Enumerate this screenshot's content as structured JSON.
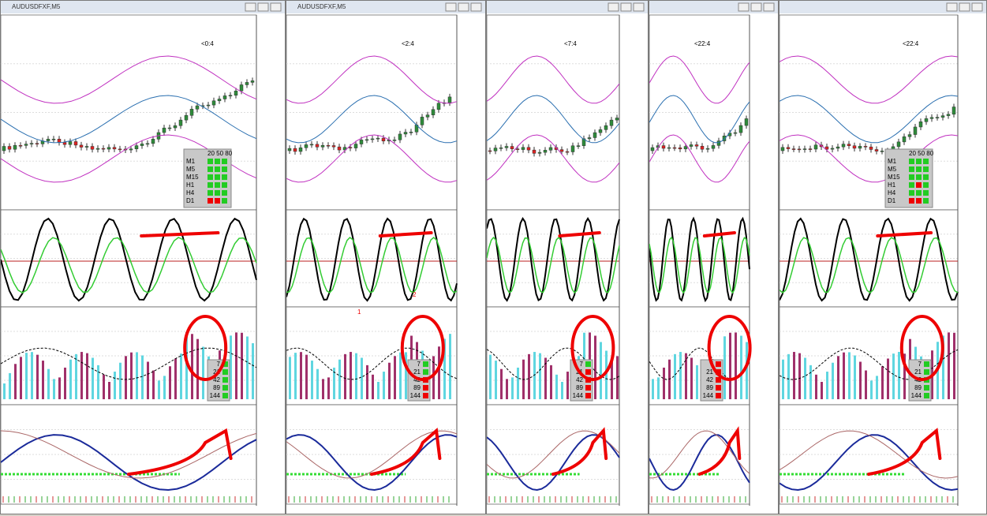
{
  "windows": [
    {
      "title": "AUDUSDFXF,M5",
      "label": "<0:4",
      "tf_panel": {
        "header": "20 50 80",
        "rows": [
          "M1",
          "M5",
          "M15",
          "H1",
          "H4",
          "D1"
        ]
      },
      "adx_legend": [
        "7",
        "21",
        "42",
        "89",
        "144"
      ]
    },
    {
      "title": "AUDUSDFXF,M5",
      "label": "<2:4",
      "adx_legend": [
        "7",
        "21",
        "42",
        "89",
        "144"
      ],
      "annotations": [
        "1",
        "2"
      ]
    },
    {
      "label": "<7:4",
      "adx_legend": [
        "7",
        "21",
        "42",
        "89",
        "144"
      ]
    },
    {
      "label": "<22:4",
      "adx_legend": [
        "7",
        "21",
        "42",
        "89",
        "144"
      ]
    },
    {
      "label": "<22:4",
      "tf_panel": {
        "header": "20 50 80",
        "rows": [
          "M1",
          "M5",
          "M15",
          "H1",
          "H4",
          "D1"
        ]
      },
      "adx_legend": [
        "7",
        "21",
        "42",
        "89",
        "144"
      ]
    }
  ]
}
